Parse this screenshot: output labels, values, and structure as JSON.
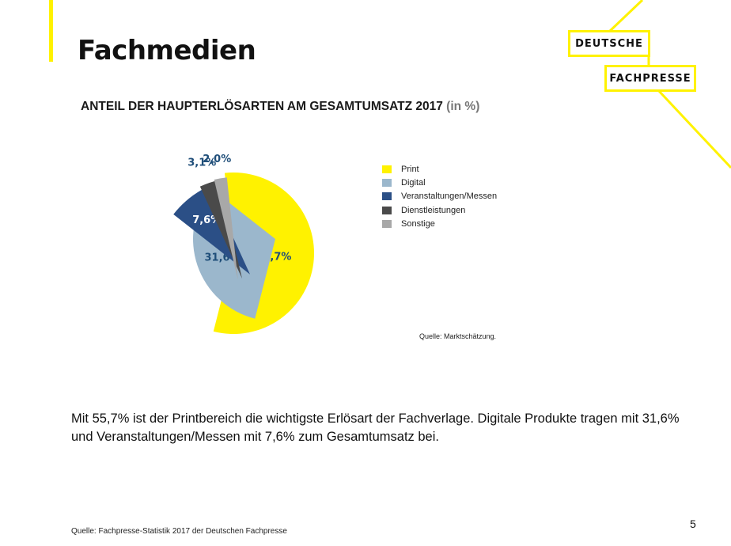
{
  "page": {
    "title": "Fachmedien",
    "logo": {
      "line1": "DEUTSCHE",
      "line2": "FACHPRESSE"
    },
    "body_text": "Mit 55,7% ist der Printbereich die wichtigste Erlösart der Fachverlage. Digitale Produkte tragen mit 31,6% und Veranstaltungen/Messen mit 7,6% zum Gesamtumsatz bei.",
    "footer_source": "Quelle: Fachpresse-Statistik 2017 der Deutschen Fachpresse",
    "page_number": "5",
    "accent_color": "#FFF200"
  },
  "chart_data": {
    "type": "pie",
    "title": "ANTEIL DER HAUPTERLÖSARTEN AM GESAMTUMSATZ 2017",
    "unit": "(in %)",
    "source": "Quelle: Marktschätzung.",
    "legend_position": "right",
    "slices": [
      {
        "name": "Print",
        "value": 55.7,
        "label": "55,7%",
        "color": "#FFF200",
        "label_color": "#1f4e79"
      },
      {
        "name": "Digital",
        "value": 31.6,
        "label": "31,6%",
        "color": "#9BB7CC",
        "label_color": "#1f4e79"
      },
      {
        "name": "Veranstaltungen/Messen",
        "value": 7.6,
        "label": "7,6%",
        "color": "#2B4F86",
        "label_color": "#ffffff"
      },
      {
        "name": "Dienstleistungen",
        "value": 3.1,
        "label": "3,1%",
        "color": "#4A4A4A",
        "label_color": "#1f4e79"
      },
      {
        "name": "Sonstige",
        "value": 2.0,
        "label": "2,0%",
        "color": "#A8A8A8",
        "label_color": "#1f4e79"
      }
    ]
  }
}
